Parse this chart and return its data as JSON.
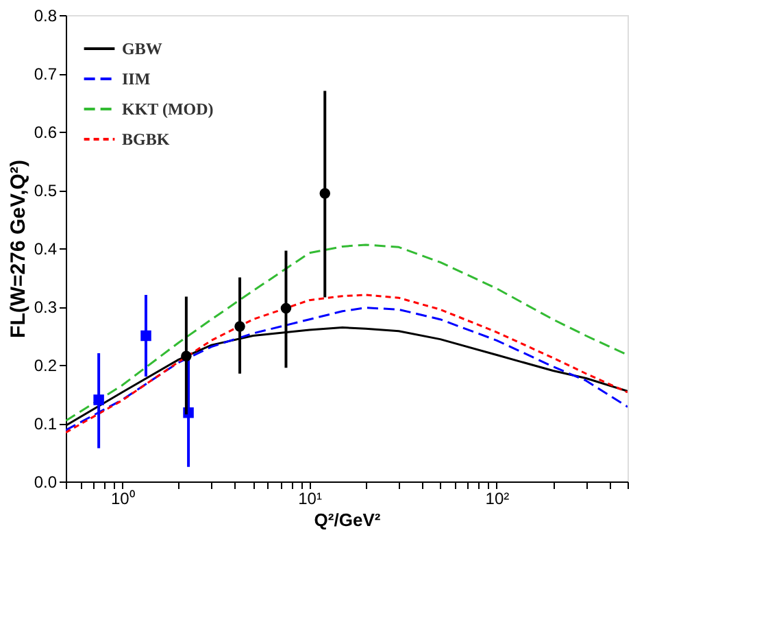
{
  "chart_data": {
    "type": "line",
    "xlabel": "Q²/GeV²",
    "ylabel": "FL(W=276 GeV,Q²)",
    "log": "x",
    "xlim": [
      0.5,
      500
    ],
    "ylim": [
      0,
      0.8
    ],
    "xticks": [
      {
        "value": 0.5,
        "label": null
      },
      {
        "value": 0.6,
        "label": null
      },
      {
        "value": 0.7,
        "label": null
      },
      {
        "value": 0.8,
        "label": null
      },
      {
        "value": 0.9,
        "label": null
      },
      {
        "value": 1,
        "label": "10⁰"
      },
      {
        "value": 2,
        "label": null
      },
      {
        "value": 3,
        "label": null
      },
      {
        "value": 4,
        "label": null
      },
      {
        "value": 5,
        "label": null
      },
      {
        "value": 6,
        "label": null
      },
      {
        "value": 7,
        "label": null
      },
      {
        "value": 8,
        "label": null
      },
      {
        "value": 9,
        "label": null
      },
      {
        "value": 10,
        "label": "10¹"
      },
      {
        "value": 20,
        "label": null
      },
      {
        "value": 30,
        "label": null
      },
      {
        "value": 40,
        "label": null
      },
      {
        "value": 50,
        "label": null
      },
      {
        "value": 60,
        "label": null
      },
      {
        "value": 70,
        "label": null
      },
      {
        "value": 80,
        "label": null
      },
      {
        "value": 90,
        "label": null
      },
      {
        "value": 100,
        "label": "10²"
      },
      {
        "value": 200,
        "label": null
      },
      {
        "value": 300,
        "label": null
      },
      {
        "value": 400,
        "label": null
      },
      {
        "value": 500,
        "label": null
      }
    ],
    "yticks": [
      {
        "value": 0,
        "label": "0.0"
      },
      0.1,
      0.2,
      0.3,
      0.4,
      0.5,
      0.6,
      0.7,
      0.8
    ],
    "grid": false,
    "legend": "top left",
    "x": [
      0.5,
      1,
      2,
      3,
      5,
      10,
      15,
      20,
      30,
      50,
      100,
      200,
      300,
      500
    ],
    "series": [
      {
        "name": "GBW",
        "color": "#000000",
        "line_style": "solid",
        "values": [
          0.096,
          0.153,
          0.209,
          0.234,
          0.25,
          0.26,
          0.264,
          0.262,
          0.258,
          0.244,
          0.217,
          0.19,
          0.177,
          0.155
        ]
      },
      {
        "name": "IIM",
        "color": "#0000ff",
        "line_style": "dashed",
        "values": [
          0.088,
          0.14,
          0.204,
          0.231,
          0.254,
          0.278,
          0.292,
          0.298,
          0.295,
          0.278,
          0.242,
          0.197,
          0.173,
          0.128
        ]
      },
      {
        "name": "KKT (MOD)",
        "color": "#33bb33",
        "line_style": "dashed",
        "values": [
          0.104,
          0.165,
          0.238,
          0.278,
          0.327,
          0.392,
          0.403,
          0.406,
          0.402,
          0.376,
          0.331,
          0.278,
          0.25,
          0.217
        ]
      },
      {
        "name": "BGBK",
        "color": "#ff0000",
        "line_style": "dotted",
        "values": [
          0.084,
          0.139,
          0.205,
          0.242,
          0.278,
          0.311,
          0.318,
          0.32,
          0.315,
          0.295,
          0.256,
          0.212,
          0.185,
          0.153
        ]
      },
      {
        "type": "scatter",
        "marker": "square",
        "color": "#0000ff",
        "x": [
          0.75,
          1.34,
          2.26
        ],
        "values": [
          0.14,
          0.25,
          0.118
        ],
        "errors": [
          [
            0.057,
            0.22
          ],
          [
            0.18,
            0.32
          ],
          [
            0.025,
            0.21
          ]
        ]
      },
      {
        "type": "scatter",
        "marker": "circle",
        "color": "#000000",
        "x": [
          2.2,
          4.25,
          7.5,
          12.1
        ],
        "values": [
          0.215,
          0.266,
          0.297,
          0.494
        ],
        "errors": [
          [
            0.115,
            0.317
          ],
          [
            0.185,
            0.35
          ],
          [
            0.195,
            0.396
          ],
          [
            0.316,
            0.67
          ]
        ]
      }
    ]
  }
}
